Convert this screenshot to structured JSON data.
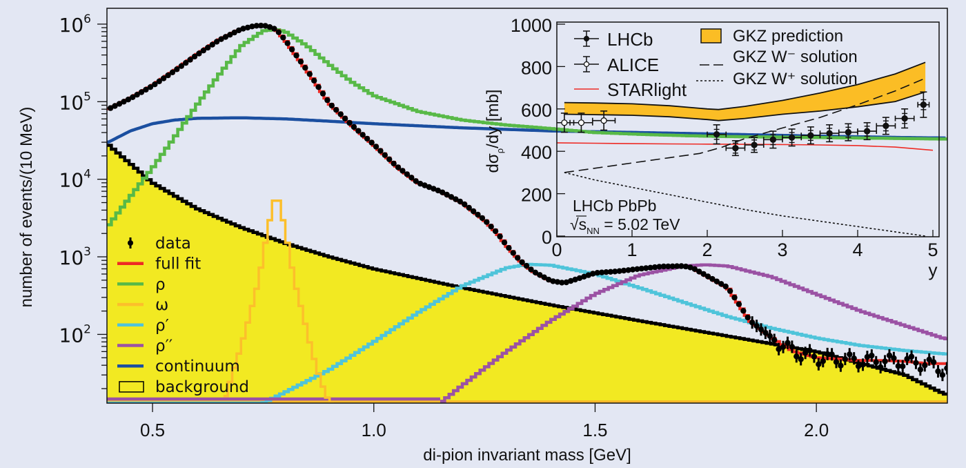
{
  "chart_data": [
    {
      "id": "main",
      "type": "line",
      "title": "",
      "xlabel": "di-pion invariant mass [GeV]",
      "ylabel": "number of events/(10 MeV)",
      "xscale": "linear",
      "yscale": "log",
      "xlim": [
        0.397,
        2.296
      ],
      "ylim": [
        13,
        1600000
      ],
      "x_ticks": [
        {
          "value": 0.5,
          "label": "0.5"
        },
        {
          "value": 1.0,
          "label": "1.0"
        },
        {
          "value": 1.5,
          "label": "1.5"
        },
        {
          "value": 2.0,
          "label": "2.0"
        }
      ],
      "y_ticks": [
        {
          "value": 100,
          "base": "10",
          "exp": "2"
        },
        {
          "value": 1000,
          "base": "10",
          "exp": "3"
        },
        {
          "value": 10000,
          "base": "10",
          "exp": "4"
        },
        {
          "value": 100000,
          "base": "10",
          "exp": "5"
        },
        {
          "value": 1000000,
          "base": "10",
          "exp": "6"
        }
      ],
      "grid": false,
      "legend_position": "bottom-left",
      "legend": [
        {
          "key": "data",
          "label": "data",
          "style": "marker",
          "color": "#000000"
        },
        {
          "key": "fullfit",
          "label": "full fit",
          "style": "line",
          "color": "#ee2a24"
        },
        {
          "key": "rho",
          "label": "ρ",
          "style": "line",
          "color": "#58b947"
        },
        {
          "key": "omega",
          "label": "ω",
          "style": "line",
          "color": "#fcbf2b"
        },
        {
          "key": "rhop",
          "label": "ρ′",
          "style": "line",
          "color": "#4fc4da"
        },
        {
          "key": "rhopp",
          "label": "ρ′′",
          "style": "line",
          "color": "#9b52a4"
        },
        {
          "key": "continuum",
          "label": "continuum",
          "style": "line",
          "color": "#1b4fa0"
        },
        {
          "key": "background",
          "label": "background",
          "style": "box",
          "color": "#f2e922"
        }
      ],
      "series": [
        {
          "key": "data",
          "name": "data",
          "kind": "points",
          "x": [
            0.4,
            0.45,
            0.5,
            0.55,
            0.6,
            0.65,
            0.7,
            0.73,
            0.75,
            0.76,
            0.78,
            0.8,
            0.85,
            0.9,
            0.95,
            1.0,
            1.05,
            1.1,
            1.15,
            1.2,
            1.25,
            1.28,
            1.3,
            1.33,
            1.36,
            1.4,
            1.43,
            1.46,
            1.5,
            1.55,
            1.6,
            1.65,
            1.7,
            1.72,
            1.75,
            1.8,
            1.85,
            1.88,
            1.92,
            1.95,
            2.0,
            2.05,
            2.1,
            2.15,
            2.2,
            2.25,
            2.29
          ],
          "y": [
            80000,
            110000,
            160000,
            250000,
            400000,
            620000,
            860000,
            950000,
            960000,
            940000,
            850000,
            620000,
            250000,
            95000,
            50000,
            28000,
            15000,
            9000,
            7000,
            5000,
            3000,
            2000,
            1400,
            900,
            650,
            490,
            460,
            520,
            620,
            650,
            700,
            750,
            760,
            720,
            580,
            400,
            150,
            110,
            75,
            60,
            50,
            48,
            46,
            46,
            45,
            42,
            35
          ]
        },
        {
          "key": "fullfit",
          "name": "full fit",
          "kind": "line",
          "x": [
            0.4,
            0.45,
            0.5,
            0.55,
            0.6,
            0.65,
            0.7,
            0.73,
            0.75,
            0.76,
            0.78,
            0.8,
            0.85,
            0.9,
            0.95,
            1.0,
            1.05,
            1.1,
            1.15,
            1.2,
            1.25,
            1.28,
            1.3,
            1.33,
            1.36,
            1.4,
            1.43,
            1.46,
            1.5,
            1.55,
            1.6,
            1.65,
            1.7,
            1.72,
            1.75,
            1.8,
            1.85,
            1.88,
            1.92,
            1.95,
            2.0,
            2.05,
            2.1,
            2.15,
            2.2,
            2.25,
            2.29
          ],
          "y": [
            80000,
            110000,
            160000,
            250000,
            400000,
            620000,
            860000,
            950000,
            960000,
            940000,
            850000,
            620000,
            250000,
            95000,
            50000,
            28000,
            15000,
            9000,
            7000,
            5000,
            3000,
            2000,
            1400,
            900,
            650,
            490,
            460,
            520,
            620,
            650,
            700,
            750,
            760,
            720,
            580,
            400,
            150,
            110,
            75,
            60,
            50,
            48,
            46,
            46,
            45,
            42,
            42
          ]
        },
        {
          "key": "rho",
          "name": "ρ",
          "kind": "step",
          "x": [
            0.4,
            0.45,
            0.5,
            0.55,
            0.6,
            0.65,
            0.7,
            0.75,
            0.78,
            0.8,
            0.85,
            0.9,
            0.95,
            1.0,
            1.1,
            1.2,
            1.3,
            1.4,
            1.5,
            1.6,
            1.7,
            1.8,
            1.9,
            2.0,
            2.1,
            2.2,
            2.29
          ],
          "y": [
            2500,
            6000,
            14000,
            35000,
            90000,
            220000,
            520000,
            820000,
            850000,
            800000,
            520000,
            300000,
            180000,
            120000,
            75000,
            58000,
            50000,
            45000,
            40000,
            38000,
            36500,
            35500,
            35000,
            34500,
            34000,
            33500,
            33000
          ]
        },
        {
          "key": "omega",
          "name": "ω",
          "kind": "step",
          "x": [
            0.66,
            0.68,
            0.7,
            0.72,
            0.74,
            0.76,
            0.77,
            0.78,
            0.79,
            0.8,
            0.82,
            0.84,
            0.86,
            0.88,
            0.9,
            0.91
          ],
          "y": [
            13,
            30,
            70,
            180,
            500,
            2200,
            4000,
            7000,
            4000,
            2200,
            500,
            180,
            60,
            25,
            13,
            13
          ]
        },
        {
          "key": "rhop",
          "name": "ρ′",
          "kind": "step",
          "x": [
            0.7,
            0.75,
            0.8,
            0.9,
            1.0,
            1.1,
            1.2,
            1.3,
            1.35,
            1.4,
            1.5,
            1.6,
            1.7,
            1.8,
            1.9,
            2.0,
            2.1,
            2.2,
            2.29
          ],
          "y": [
            13,
            13,
            18,
            35,
            80,
            190,
            420,
            720,
            800,
            780,
            600,
            400,
            260,
            170,
            120,
            90,
            72,
            62,
            56
          ]
        },
        {
          "key": "rhopp",
          "name": "ρ′′",
          "kind": "step",
          "x": [
            1.1,
            1.15,
            1.2,
            1.3,
            1.4,
            1.5,
            1.6,
            1.7,
            1.75,
            1.8,
            1.9,
            2.0,
            2.1,
            2.2,
            2.29
          ],
          "y": [
            13,
            13,
            22,
            60,
            150,
            330,
            580,
            760,
            790,
            760,
            550,
            330,
            200,
            130,
            88
          ]
        },
        {
          "key": "continuum",
          "name": "continuum",
          "kind": "line",
          "x": [
            0.4,
            0.45,
            0.5,
            0.55,
            0.6,
            0.7,
            0.8,
            0.9,
            1.0,
            1.2,
            1.4,
            1.6,
            1.8,
            2.0,
            2.2,
            2.29
          ],
          "y": [
            30000,
            42000,
            52000,
            58000,
            61000,
            62000,
            60000,
            56000,
            52000,
            46000,
            42000,
            40000,
            38000,
            36000,
            34500,
            34000
          ]
        },
        {
          "key": "background",
          "name": "background",
          "kind": "filled-step",
          "x": [
            0.4,
            0.5,
            0.6,
            0.7,
            0.8,
            0.9,
            1.0,
            1.2,
            1.4,
            1.6,
            1.8,
            2.0,
            2.2,
            2.29
          ],
          "y": [
            28000,
            9000,
            4200,
            2400,
            1500,
            1000,
            700,
            400,
            240,
            150,
            95,
            60,
            30,
            17
          ]
        }
      ]
    },
    {
      "id": "inset",
      "type": "line",
      "title": "",
      "xlabel": "y",
      "ylabel": "dσρ/dy [mb]",
      "ylabel_parts": {
        "pre": "dσ",
        "sub": "ρ",
        "post": "/dy [mb]"
      },
      "xlim": [
        0,
        5
      ],
      "ylim": [
        0,
        1000
      ],
      "x_ticks": [
        0,
        1,
        2,
        3,
        4,
        5
      ],
      "y_ticks": [
        0,
        200,
        400,
        600,
        800,
        1000
      ],
      "grid": false,
      "legend_position": "top",
      "legend": [
        {
          "key": "lhcb",
          "label": "LHCb",
          "style": "filled-point"
        },
        {
          "key": "alice",
          "label": "ALICE",
          "style": "open-point"
        },
        {
          "key": "starlight",
          "label": "STARlight",
          "style": "line",
          "color": "#ee2a24"
        },
        {
          "key": "gkz_band",
          "label": "GKZ prediction",
          "style": "band",
          "color": "#fbbd25"
        },
        {
          "key": "gkz_wminus",
          "label": "GKZ W⁻ solution",
          "style": "dashed"
        },
        {
          "key": "gkz_wplus",
          "label": "GKZ W⁺ solution",
          "style": "dotted"
        }
      ],
      "annotation": {
        "line1": "LHCb PbPb",
        "sqrt": "√",
        "s": "s",
        "sub": "NN",
        "rest": " = 5.02 TeV"
      },
      "series": [
        {
          "key": "lhcb",
          "name": "LHCb",
          "kind": "errorbar",
          "x": [
            2.125,
            2.375,
            2.625,
            2.875,
            3.125,
            3.375,
            3.625,
            3.875,
            4.125,
            4.375,
            4.625,
            4.875
          ],
          "xerr": [
            0.125,
            0.125,
            0.125,
            0.125,
            0.125,
            0.125,
            0.125,
            0.125,
            0.125,
            0.125,
            0.125,
            0.075
          ],
          "y": [
            480,
            415,
            430,
            455,
            465,
            475,
            485,
            490,
            495,
            520,
            555,
            620
          ],
          "yerr": [
            45,
            35,
            35,
            40,
            40,
            40,
            40,
            40,
            40,
            40,
            45,
            60
          ]
        },
        {
          "key": "alice",
          "name": "ALICE",
          "kind": "errorbar",
          "x": [
            0.1,
            0.325,
            0.625
          ],
          "xerr": [
            0.125,
            0.15,
            0.15
          ],
          "y": [
            535,
            535,
            545
          ],
          "yerr": [
            45,
            45,
            45
          ]
        },
        {
          "key": "starlight",
          "name": "STARlight",
          "kind": "line",
          "x": [
            0,
            0.5,
            1,
            1.5,
            2,
            2.5,
            3,
            3.5,
            4,
            4.5,
            5
          ],
          "y": [
            440,
            438,
            436,
            435,
            434,
            433,
            432,
            430,
            427,
            420,
            405
          ]
        },
        {
          "key": "gkz_band",
          "name": "GKZ prediction",
          "kind": "band",
          "x": [
            0.1,
            0.5,
            1,
            1.5,
            2,
            2.15,
            2.5,
            3,
            3.5,
            4,
            4.5,
            4.9
          ],
          "ylow": [
            575,
            573,
            570,
            563,
            550,
            545,
            555,
            575,
            590,
            610,
            635,
            680
          ],
          "yhigh": [
            630,
            628,
            624,
            615,
            600,
            597,
            612,
            640,
            675,
            715,
            765,
            820
          ]
        },
        {
          "key": "gkz_wminus",
          "name": "GKZ W⁻ solution",
          "kind": "dashed",
          "x": [
            0.1,
            0.5,
            1,
            1.5,
            1.9,
            2.2,
            2.5,
            3,
            3.5,
            4,
            4.5,
            4.9
          ],
          "y": [
            300,
            320,
            345,
            370,
            390,
            420,
            460,
            510,
            560,
            620,
            685,
            745
          ]
        },
        {
          "key": "gkz_wplus",
          "name": "GKZ W⁺ solution",
          "kind": "dotted",
          "x": [
            0.1,
            0.5,
            1,
            1.5,
            2,
            2.5,
            3,
            3.5,
            4,
            4.5,
            4.9
          ],
          "y": [
            300,
            265,
            230,
            195,
            160,
            125,
            95,
            70,
            45,
            20,
            0
          ]
        }
      ]
    }
  ]
}
